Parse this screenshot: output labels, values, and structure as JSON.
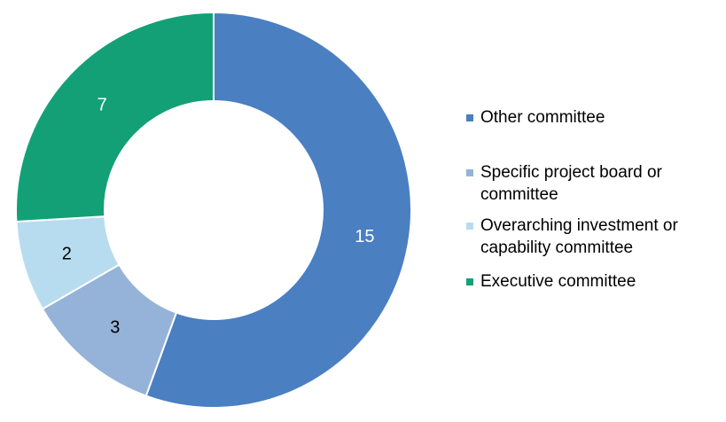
{
  "chart_data": {
    "type": "pie",
    "variant": "donut",
    "slices": [
      {
        "label": "Other committee",
        "value": 15,
        "color": "#4a7fc1",
        "label_color": "#ffffff"
      },
      {
        "label": "Specific project board or committee",
        "value": 3,
        "color": "#95b3d9",
        "label_color": "#000000"
      },
      {
        "label": "Overarching investment or capability committee",
        "value": 2,
        "color": "#b8dcef",
        "label_color": "#000000"
      },
      {
        "label": "Executive committee",
        "value": 7,
        "color": "#13a077",
        "label_color": "#ffffff"
      }
    ],
    "legend_placement": "right",
    "legend": [
      {
        "label": "Other committee",
        "color": "#4a7fc1"
      },
      {
        "label": "Specific project board or committee",
        "color": "#95b3d9"
      },
      {
        "label": "Overarching investment or capability committee",
        "color": "#b8dcef"
      },
      {
        "label": "Executive committee",
        "color": "#13a077"
      }
    ]
  }
}
